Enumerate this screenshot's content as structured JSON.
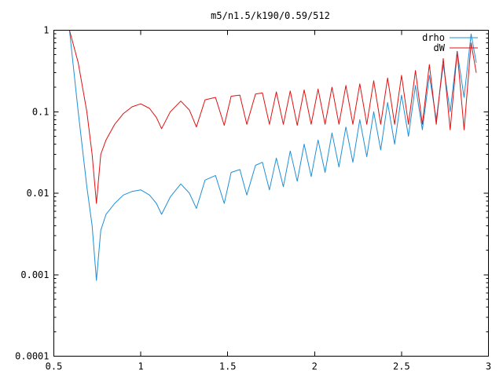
{
  "chart_data": {
    "type": "line",
    "title": "m5/n1.5/k190/0.59/512",
    "xlabel": "",
    "ylabel": "",
    "xlim": [
      0.5,
      3
    ],
    "ylim": [
      0.0001,
      1
    ],
    "yscale": "log",
    "grid": false,
    "legend_position": "top-right",
    "x_ticks": [
      {
        "value": 0.5,
        "label": "0.5"
      },
      {
        "value": 1,
        "label": "1"
      },
      {
        "value": 1.5,
        "label": "1.5"
      },
      {
        "value": 2,
        "label": "2"
      },
      {
        "value": 2.5,
        "label": "2.5"
      },
      {
        "value": 3,
        "label": "3"
      }
    ],
    "y_ticks": [
      {
        "value": 0.0001,
        "label": "0.0001"
      },
      {
        "value": 0.001,
        "label": "0.001"
      },
      {
        "value": 0.01,
        "label": "0.01"
      },
      {
        "value": 0.1,
        "label": "0.1"
      },
      {
        "value": 1,
        "label": "1"
      }
    ],
    "series": [
      {
        "name": "drho",
        "color": "#1f8fd6",
        "x": [
          0.59,
          0.64,
          0.69,
          0.72,
          0.745,
          0.77,
          0.8,
          0.85,
          0.9,
          0.95,
          1.0,
          1.05,
          1.09,
          1.12,
          1.17,
          1.23,
          1.28,
          1.32,
          1.37,
          1.43,
          1.48,
          1.52,
          1.57,
          1.61,
          1.66,
          1.7,
          1.74,
          1.78,
          1.82,
          1.86,
          1.9,
          1.94,
          1.98,
          2.02,
          2.06,
          2.1,
          2.14,
          2.18,
          2.22,
          2.26,
          2.3,
          2.34,
          2.38,
          2.42,
          2.46,
          2.5,
          2.54,
          2.58,
          2.62,
          2.66,
          2.7,
          2.74,
          2.78,
          2.82,
          2.86,
          2.9,
          2.93
        ],
        "y": [
          1.0,
          0.1,
          0.012,
          0.004,
          0.00085,
          0.0035,
          0.0055,
          0.0075,
          0.0095,
          0.0105,
          0.011,
          0.0095,
          0.0075,
          0.0055,
          0.009,
          0.013,
          0.01,
          0.0065,
          0.0145,
          0.0165,
          0.0075,
          0.018,
          0.0195,
          0.0095,
          0.022,
          0.024,
          0.011,
          0.027,
          0.012,
          0.033,
          0.014,
          0.04,
          0.016,
          0.045,
          0.018,
          0.055,
          0.021,
          0.065,
          0.024,
          0.08,
          0.028,
          0.1,
          0.034,
          0.13,
          0.04,
          0.16,
          0.05,
          0.21,
          0.06,
          0.28,
          0.08,
          0.38,
          0.1,
          0.55,
          0.15,
          0.9,
          0.4
        ]
      },
      {
        "name": "dW",
        "color": "#e01010",
        "x": [
          0.59,
          0.64,
          0.69,
          0.72,
          0.745,
          0.77,
          0.8,
          0.85,
          0.9,
          0.95,
          1.0,
          1.05,
          1.09,
          1.12,
          1.17,
          1.23,
          1.28,
          1.32,
          1.37,
          1.43,
          1.48,
          1.52,
          1.57,
          1.61,
          1.66,
          1.7,
          1.74,
          1.78,
          1.82,
          1.86,
          1.9,
          1.94,
          1.98,
          2.02,
          2.06,
          2.1,
          2.14,
          2.18,
          2.22,
          2.26,
          2.3,
          2.34,
          2.38,
          2.42,
          2.46,
          2.5,
          2.54,
          2.58,
          2.62,
          2.66,
          2.7,
          2.74,
          2.78,
          2.82,
          2.86,
          2.9,
          2.93
        ],
        "y": [
          1.0,
          0.4,
          0.1,
          0.03,
          0.0075,
          0.03,
          0.045,
          0.07,
          0.095,
          0.115,
          0.125,
          0.11,
          0.085,
          0.062,
          0.1,
          0.135,
          0.105,
          0.065,
          0.14,
          0.15,
          0.068,
          0.155,
          0.16,
          0.07,
          0.165,
          0.17,
          0.07,
          0.175,
          0.07,
          0.18,
          0.068,
          0.185,
          0.07,
          0.19,
          0.07,
          0.2,
          0.07,
          0.21,
          0.07,
          0.22,
          0.07,
          0.24,
          0.07,
          0.26,
          0.07,
          0.28,
          0.07,
          0.32,
          0.07,
          0.38,
          0.07,
          0.45,
          0.06,
          0.55,
          0.06,
          0.7,
          0.3
        ]
      }
    ]
  }
}
